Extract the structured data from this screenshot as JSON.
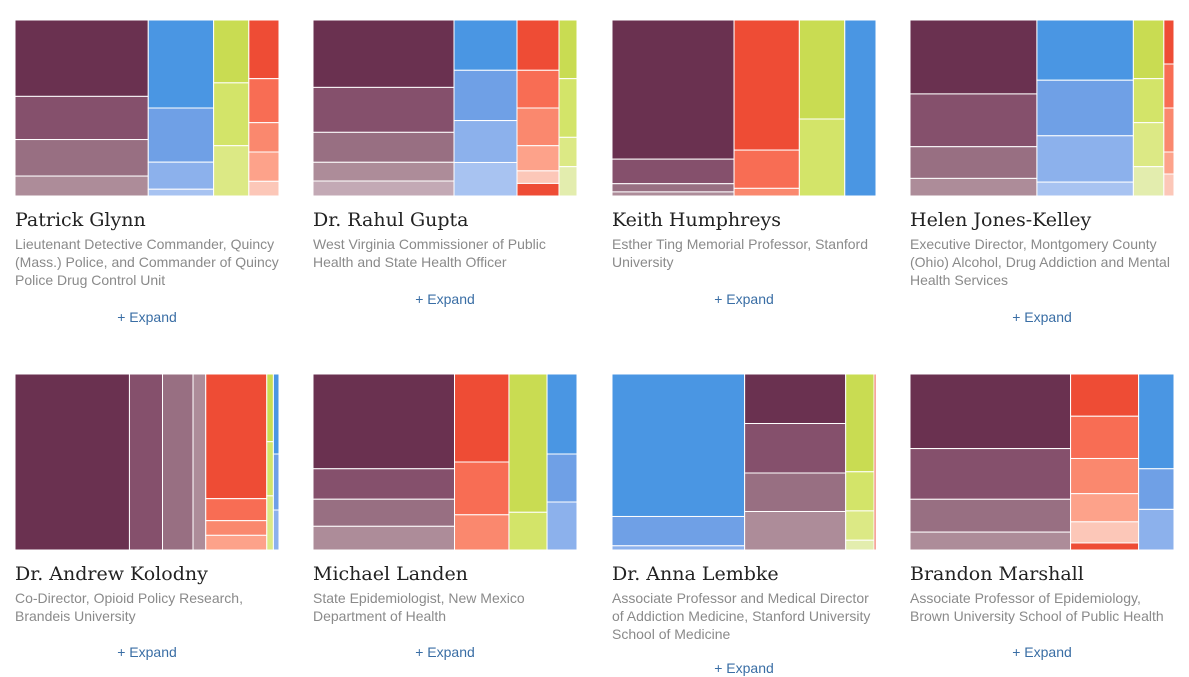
{
  "colors": {
    "purple_dark": "#6a3150",
    "purple_mid": "#85506c",
    "purple_muted": "#986f82",
    "purple_soft": "#ad8c99",
    "purple_light": "#c3a9b5",
    "blue_strong": "#4a96e3",
    "blue_mid": "#6fa0e6",
    "blue_light": "#8cb1ec",
    "blue_pale": "#a8c3f1",
    "red": "#ee4c35",
    "coral": "#f86d54",
    "salmon": "#fa886e",
    "peach": "#fda28a",
    "peach_light": "#fcc7b8",
    "lime": "#c9dc52",
    "lime_mid": "#d3e469",
    "lime_light": "#dce985",
    "lime_pale": "#e3edae"
  },
  "expand_label": "+ Expand",
  "chart_data": [
    {
      "type": "treemap",
      "name": "Patrick Glynn",
      "title": "Lieutenant Detective Commander, Quincy (Mass.) Police, and Commander of Quincy Police Drug Control Unit",
      "groups": [
        {
          "color": "purple",
          "values": [
            23,
            13,
            11,
            6
          ]
        },
        {
          "color": "blue",
          "values": [
            13,
            8,
            4,
            1
          ]
        },
        {
          "color": "lime",
          "values": [
            5,
            5,
            4
          ]
        },
        {
          "color": "red",
          "values": [
            4,
            3,
            2,
            2,
            1
          ]
        }
      ]
    },
    {
      "type": "treemap",
      "name": "Dr. Rahul Gupta",
      "title": "West Virginia Commissioner of Public Health and State Health Officer",
      "groups": [
        {
          "color": "purple",
          "values": [
            18,
            12,
            8,
            5,
            4
          ]
        },
        {
          "color": "blue",
          "values": [
            6,
            6,
            5,
            4
          ]
        },
        {
          "color": "red",
          "values": [
            4,
            3,
            3,
            2,
            1,
            1
          ]
        },
        {
          "color": "lime",
          "values": [
            2,
            2,
            1,
            1
          ]
        }
      ]
    },
    {
      "type": "treemap",
      "name": "Keith Humphreys",
      "title": "Esther Ting Memorial Professor, Stanford University",
      "groups": [
        {
          "color": "purple",
          "values": [
            34,
            6,
            2,
            1
          ]
        },
        {
          "color": "red",
          "values": [
            17,
            5,
            1
          ]
        },
        {
          "color": "lime",
          "values": [
            9,
            7
          ]
        },
        {
          "color": "blue",
          "values": [
            11
          ]
        }
      ]
    },
    {
      "type": "treemap",
      "name": "Helen Jones-Kelley",
      "title": "Executive Director, Montgomery County (Ohio) Alcohol, Drug Addiction and Mental Health Services",
      "groups": [
        {
          "color": "purple",
          "values": [
            21,
            15,
            9,
            5
          ]
        },
        {
          "color": "blue",
          "values": [
            13,
            12,
            10,
            3
          ]
        },
        {
          "color": "lime",
          "values": [
            4,
            3,
            3,
            2
          ]
        },
        {
          "color": "red",
          "values": [
            1,
            1,
            1,
            0.5,
            0.5
          ]
        }
      ]
    },
    {
      "type": "treemap",
      "name": "Dr. Andrew Kolodny",
      "title": "Co-Director, Opioid Policy Research, Brandeis University",
      "groups": [
        {
          "color": "purple",
          "values": [
            45,
            13,
            12,
            5
          ]
        },
        {
          "color": "red",
          "values": [
            17,
            3,
            2,
            2
          ]
        },
        {
          "color": "lime",
          "values": [
            1,
            0.8,
            0.8
          ]
        },
        {
          "color": "blue",
          "values": [
            1,
            0.7,
            0.5
          ]
        }
      ]
    },
    {
      "type": "treemap",
      "name": "Michael Landen",
      "title": "State Epidemiologist, New Mexico Department of Health",
      "groups": [
        {
          "color": "purple",
          "values": [
            28,
            9,
            8,
            7
          ]
        },
        {
          "color": "red",
          "values": [
            10,
            6,
            4
          ]
        },
        {
          "color": "lime",
          "values": [
            11,
            3
          ]
        },
        {
          "color": "blue",
          "values": [
            5,
            3,
            3
          ]
        }
      ]
    },
    {
      "type": "treemap",
      "name": "Dr. Anna Lembke",
      "title": "Associate Professor and Medical Director of Addiction Medicine, Stanford University School of Medicine",
      "groups": [
        {
          "color": "blue",
          "values": [
            34,
            7,
            1
          ]
        },
        {
          "color": "purple",
          "values": [
            9,
            9,
            7,
            7
          ]
        },
        {
          "color": "lime",
          "values": [
            5,
            2,
            1.5,
            0.5
          ]
        },
        {
          "color": "red",
          "values": [
            0.6
          ]
        }
      ]
    },
    {
      "type": "treemap",
      "name": "Brandon Marshall",
      "title": "Associate Professor of Epidemiology, Brown University School of Public Health",
      "groups": [
        {
          "color": "purple",
          "values": [
            25,
            17,
            11,
            6
          ]
        },
        {
          "color": "red",
          "values": [
            6,
            6,
            5,
            4,
            3,
            1
          ]
        },
        {
          "color": "blue",
          "values": [
            7,
            3,
            3
          ]
        }
      ]
    }
  ]
}
